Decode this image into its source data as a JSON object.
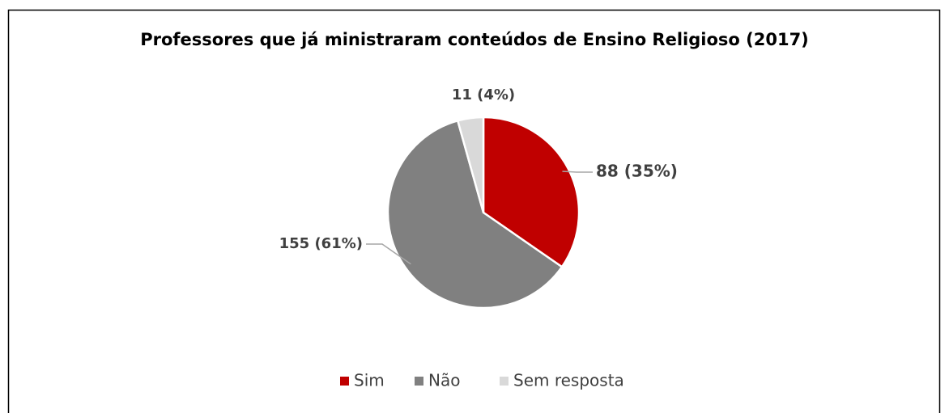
{
  "chart_data": {
    "type": "pie",
    "title": "Professores que já ministraram conteúdos de Ensino Religioso (2017)",
    "categories": [
      "Sim",
      "Não",
      "Sem resposta"
    ],
    "values": [
      88,
      155,
      11
    ],
    "value_labels": [
      "88 (35%)",
      "155 (61%)",
      "11 (4%)"
    ],
    "colors": [
      "#c00000",
      "#808080",
      "#d9d9d9"
    ],
    "legend": "bottom"
  }
}
